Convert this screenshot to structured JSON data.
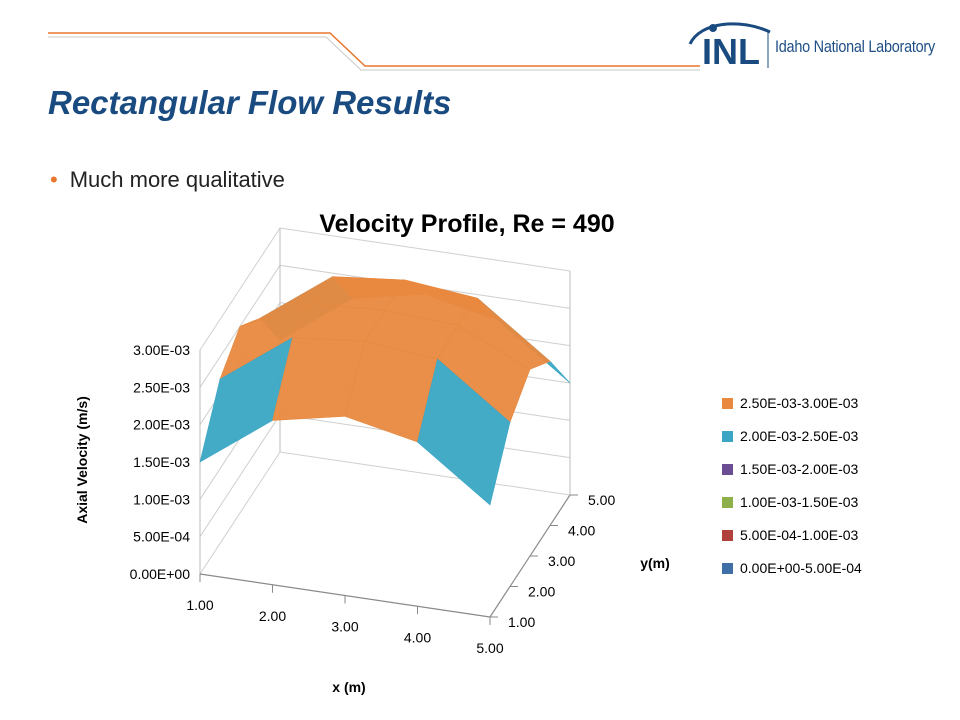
{
  "header": {
    "logo_mark": "INL",
    "logo_text": "Idaho National Laboratory",
    "accent_color": "#e8772e",
    "brand_color": "#1a4b80"
  },
  "slide": {
    "title": "Rectangular Flow Results",
    "bullets": [
      "Much more qualitative"
    ]
  },
  "chart_data": {
    "type": "surface",
    "title": "Velocity Profile, Re = 490",
    "xlabel": "x (m)",
    "ylabel": "y(m)",
    "zlabel": "Axial Velocity (m/s)",
    "x": [
      1.0,
      2.0,
      3.0,
      4.0,
      5.0
    ],
    "y": [
      1.0,
      2.0,
      3.0,
      4.0,
      5.0
    ],
    "x_ticks": [
      "1.00",
      "2.00",
      "3.00",
      "4.00",
      "5.00"
    ],
    "y_ticks": [
      "1.00",
      "2.00",
      "3.00",
      "4.00",
      "5.00"
    ],
    "z_ticks": [
      "0.00E+00",
      "5.00E-04",
      "1.00E-03",
      "1.50E-03",
      "2.00E-03",
      "2.50E-03",
      "3.00E-03"
    ],
    "zlim": [
      0,
      0.003
    ],
    "z": [
      [
        0.0015,
        0.0022,
        0.0025,
        0.0022,
        0.0015
      ],
      [
        0.0022,
        0.0029,
        0.00295,
        0.0029,
        0.0022
      ],
      [
        0.0024,
        0.003,
        0.003,
        0.003,
        0.0024
      ],
      [
        0.0022,
        0.0029,
        0.00295,
        0.0029,
        0.0022
      ],
      [
        0.0015,
        0.0022,
        0.0025,
        0.0022,
        0.0015
      ]
    ],
    "legend": [
      {
        "label": "2.50E-03-3.00E-03",
        "color": "#e8893f"
      },
      {
        "label": "2.00E-03-2.50E-03",
        "color": "#3aa6c4"
      },
      {
        "label": "1.50E-03-2.00E-03",
        "color": "#6b4d94"
      },
      {
        "label": "1.00E-03-1.50E-03",
        "color": "#8db04a"
      },
      {
        "label": "5.00E-04-1.00E-03",
        "color": "#b0403c"
      },
      {
        "label": "0.00E+00-5.00E-04",
        "color": "#3f6fa6"
      }
    ],
    "legend_position": "right"
  }
}
